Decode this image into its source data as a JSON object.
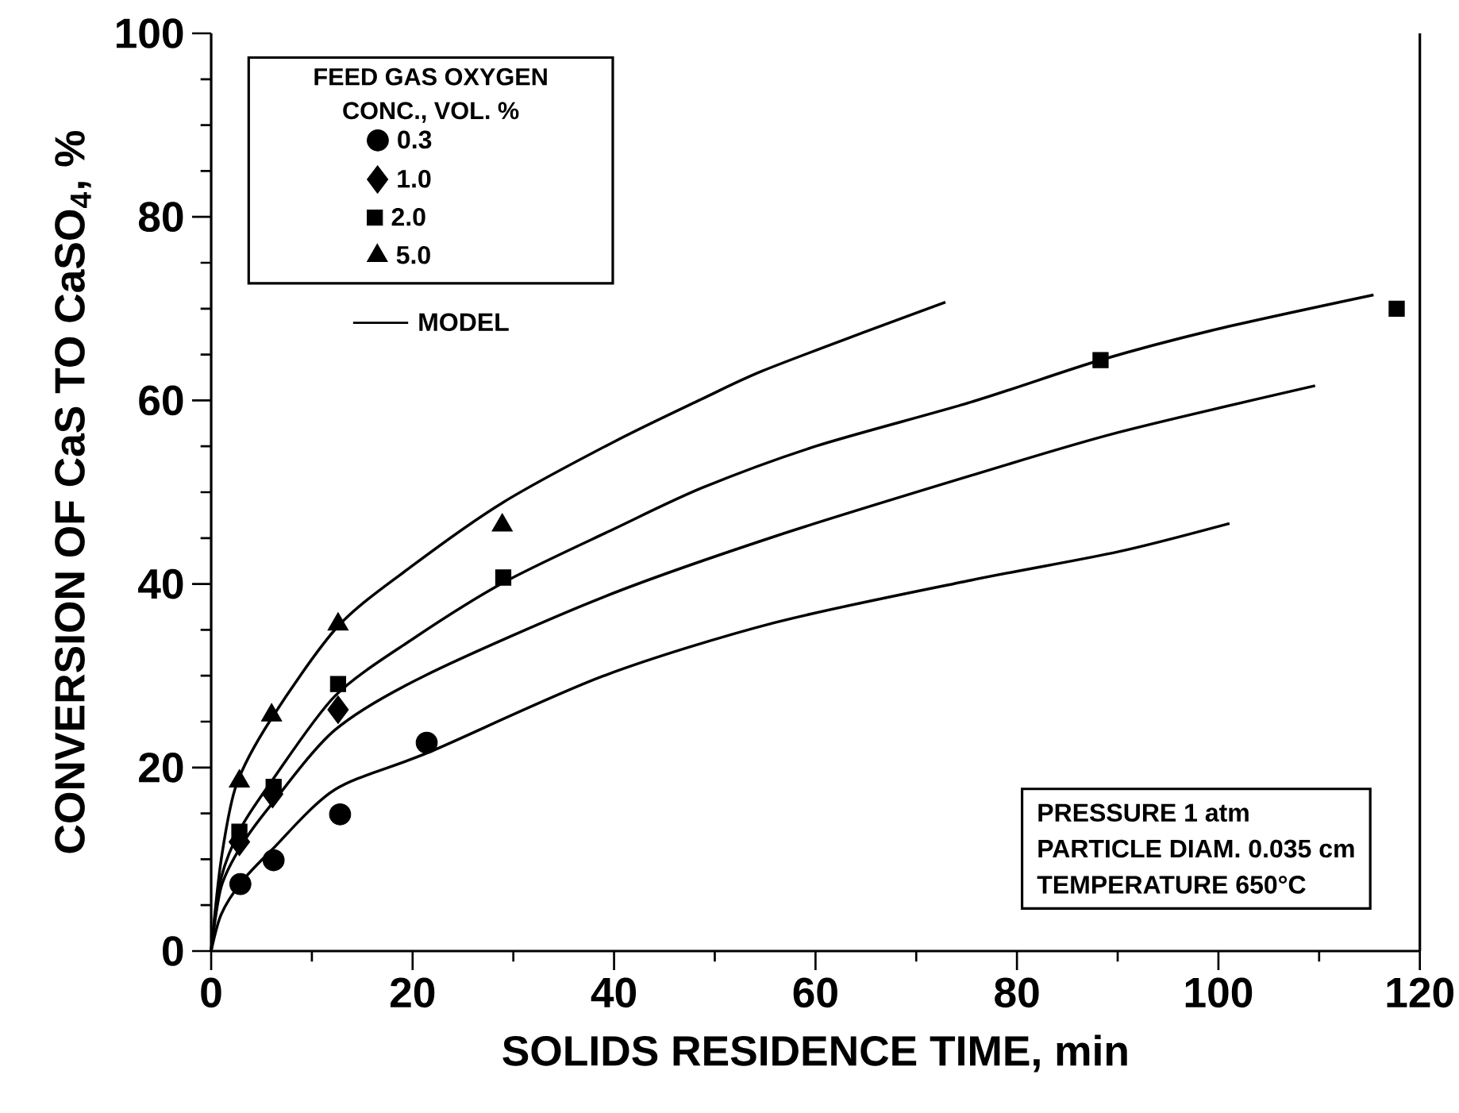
{
  "chart_data": {
    "type": "scatter",
    "xlabel": "SOLIDS RESIDENCE TIME,  min",
    "ylabel": "CONVERSION OF CaS TO CaSO$_{4}$, %",
    "legend_title": "FEED GAS OXYGEN CONC., VOL. %",
    "legend": "top left",
    "xlim": [
      0,
      120
    ],
    "ylim": [
      0,
      100
    ],
    "xticks": [
      0,
      20,
      40,
      60,
      80,
      100,
      120
    ],
    "yticks": [
      0,
      20,
      40,
      60,
      80,
      100
    ],
    "annotations": [
      "PRESSURE 1 atm",
      "PARTICLE DIAM. 0.035 cm",
      "TEMPERATURE 650°C"
    ],
    "series": [
      {
        "name": "0.3",
        "marker": "circle",
        "color": "#000000",
        "x": [
          2.9,
          6.2,
          12.8,
          21.4
        ],
        "values": [
          7.3,
          9.9,
          14.9,
          22.7
        ]
      },
      {
        "name": "1.0",
        "marker": "diamond",
        "color": "#000000",
        "x": [
          2.8,
          6.1,
          12.6
        ],
        "values": [
          11.9,
          17.1,
          26.3
        ]
      },
      {
        "name": "2.0",
        "marker": "square",
        "color": "#000000",
        "x": [
          2.8,
          6.2,
          12.6,
          29.0,
          88.3,
          117.7
        ],
        "values": [
          13.0,
          17.9,
          29.1,
          40.7,
          64.4,
          70.0
        ]
      },
      {
        "name": "5.0",
        "marker": "triangle",
        "color": "#000000",
        "x": [
          2.8,
          6.0,
          12.6,
          28.9
        ],
        "values": [
          18.5,
          25.7,
          35.6,
          46.4
        ]
      },
      {
        "name": "MODEL",
        "type": "line",
        "marker": "none",
        "color": "#000000",
        "x": [
          0,
          1,
          2.5,
          5.9,
          12.6,
          20,
          29,
          40,
          48.8,
          54.7,
          65,
          72.9
        ],
        "values": [
          0,
          10,
          18.1,
          25.2,
          35.4,
          42,
          48.9,
          55.5,
          60.2,
          63.2,
          67.5,
          70.7
        ]
      },
      {
        "type": "line",
        "marker": "none",
        "color": "#000000",
        "x": [
          0,
          1,
          3,
          6,
          12.3,
          20,
          29.1,
          40,
          48.8,
          60,
          75.4,
          88.3,
          100,
          115.4
        ],
        "values": [
          0,
          8,
          13.5,
          18.5,
          27.8,
          34,
          40.2,
          46,
          50.5,
          55,
          59.8,
          64.4,
          67.8,
          71.5
        ]
      },
      {
        "type": "line",
        "marker": "none",
        "color": "#000000",
        "x": [
          0,
          1,
          3,
          6,
          12.3,
          21.2,
          39,
          56,
          75.4,
          90,
          109.6
        ],
        "values": [
          0,
          7,
          11.5,
          16,
          24.1,
          30,
          38.6,
          45.2,
          51.8,
          56.5,
          61.6
        ]
      },
      {
        "type": "line",
        "marker": "none",
        "color": "#000000",
        "x": [
          0,
          1,
          3,
          6,
          12.3,
          21.7,
          39,
          56,
          75.4,
          90,
          101.1
        ],
        "values": [
          0,
          4,
          7.5,
          11,
          17.6,
          21.7,
          30,
          35.8,
          40.4,
          43.5,
          46.6
        ]
      }
    ]
  }
}
